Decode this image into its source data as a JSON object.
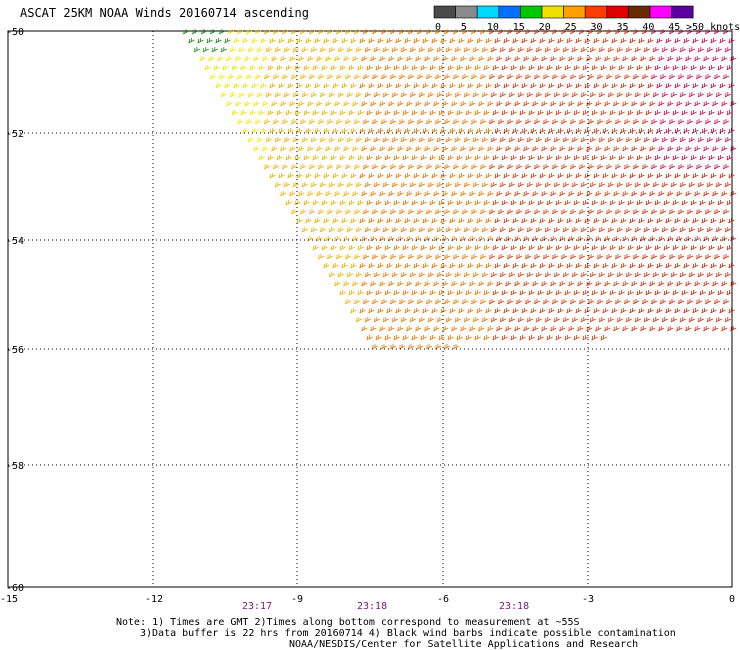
{
  "title": "ASCAT 25KM NOAA Winds 20160714 ascending",
  "legend": {
    "unit_label": ">50 knots",
    "labels": [
      "0",
      "5",
      "10",
      "15",
      "20",
      "25",
      "30",
      "35",
      "40",
      "45"
    ],
    "colors": [
      "#4a4a4a",
      "#8a8a8a",
      "#00d8ff",
      "#0070ff",
      "#00c800",
      "#f0e000",
      "#ffa000",
      "#ff3c00",
      "#e00000",
      "#6a2a00",
      "#ff00ff",
      "#5a00a0"
    ]
  },
  "map": {
    "lat_ticks": [
      "-50",
      "-52",
      "-54",
      "-56",
      "-58",
      "-60"
    ],
    "lon_ticks": [
      "-15",
      "-12",
      "-9",
      "-6",
      "-3",
      "0"
    ],
    "lat_range": [
      -60,
      -50
    ],
    "lon_range": [
      -15,
      0
    ]
  },
  "times": [
    "23:17",
    "23:18",
    "23:18"
  ],
  "notes": {
    "line1": "Note: 1) Times are GMT 2)Times along bottom correspond to measurement at ~55S",
    "line2": "3)Data buffer is 22 hrs from 20160714 4) Black wind barbs indicate possible contamination",
    "line3": "NOAA/NESDIS/Center for Satellite Applications and Research"
  }
}
